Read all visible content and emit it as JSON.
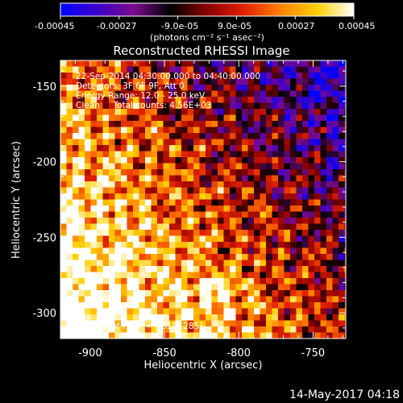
{
  "colorbar": {
    "tick_labels": [
      "-0.00045",
      "-0.00027",
      "-9.0e-05",
      "9.0e-05",
      "0.00027",
      "0.00045"
    ],
    "range": [
      -0.00045,
      0.00045
    ],
    "units_label": "(photons cm⁻² s⁻¹ asec⁻²)",
    "colormap": [
      "#0000ff",
      "#3b00c8",
      "#7b0a90",
      "#000000",
      "#8a0000",
      "#e02000",
      "#ff8000",
      "#ffd000",
      "#ffffff"
    ]
  },
  "plot": {
    "title": "Reconstructed RHESSI Image",
    "annotations": {
      "time_range": "22-Sep-2014 04:30:00.000 to 04:40:00.000",
      "detectors": "Detectors: 3F 6F 9F, Att 0",
      "energy": "Energy Range: 12.0 - 25.0 keV",
      "clean": "Clean     Total counts: 4.56E+03",
      "peak": "Position of Peak = [-818,-285]"
    },
    "footer_timestamp": "14-May-2017 04:18"
  },
  "chart_data": {
    "type": "heatmap",
    "title": "Reconstructed RHESSI Image",
    "xlabel": "Heliocentric X (arcsec)",
    "ylabel": "Heliocentric Y (arcsec)",
    "xlim": [
      -920,
      -728
    ],
    "ylim": [
      -317,
      -133
    ],
    "x_ticks": [
      -900,
      -850,
      -800,
      -750
    ],
    "y_ticks": [
      -150,
      -200,
      -250,
      -300
    ],
    "x_tick_labels": [
      "-900",
      "-850",
      "-800",
      "-750"
    ],
    "y_tick_labels": [
      "-150",
      "-200",
      "-250",
      "-300"
    ],
    "value_range": [
      -0.00045,
      0.00045
    ],
    "peak_position": [
      -818,
      -285
    ],
    "grid": false
  }
}
